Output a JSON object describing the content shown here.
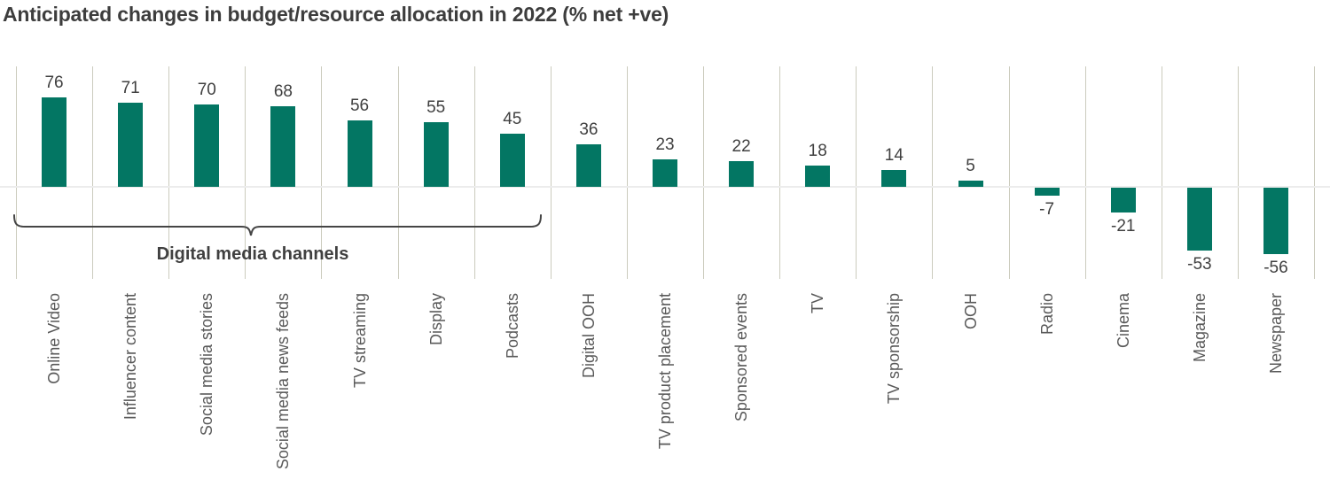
{
  "title": "Anticipated changes in budget/resource allocation in 2022 (% net +ve)",
  "annotation": {
    "label": "Digital media channels"
  },
  "colors": {
    "bar": "#037663",
    "gridline": "#cbcbbd",
    "zero_line": "#ececec",
    "title_text": "#3d3d3d",
    "value_text": "#404040",
    "category_text": "#595959",
    "bracket": "#454545"
  },
  "chart_data": {
    "type": "bar",
    "title": "Anticipated changes in budget/resource allocation in 2022 (% net +ve)",
    "categories": [
      "Online Video",
      "Influencer content",
      "Social media stories",
      "Social media news feeds",
      "TV streaming",
      "Display",
      "Podcasts",
      "Digital OOH",
      "TV product placement",
      "Sponsored events",
      "TV",
      "TV sponsorship",
      "OOH",
      "Radio",
      "Cinema",
      "Magazine",
      "Newspaper"
    ],
    "values": [
      76,
      71,
      70,
      68,
      56,
      55,
      45,
      36,
      23,
      22,
      18,
      14,
      5,
      -7,
      -21,
      -53,
      -56
    ],
    "xlabel": "",
    "ylabel": "",
    "ylim": [
      -60,
      80
    ],
    "value_labels_shown": true,
    "legend": "none",
    "grid": "vertical category separators and horizontal zero axis only",
    "category_label_orientation": "vertical",
    "annotations": [
      {
        "type": "brace",
        "text": "Digital media channels",
        "from_category": "Online Video",
        "to_category": "Podcasts"
      }
    ]
  }
}
